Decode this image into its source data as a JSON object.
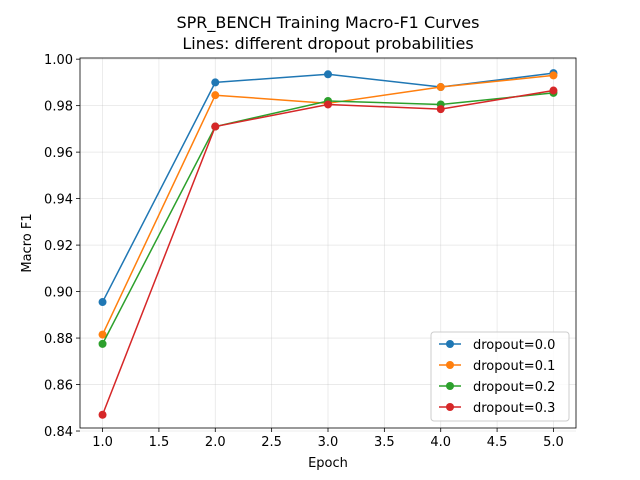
{
  "chart_data": {
    "type": "line",
    "title": "SPR_BENCH Training Macro-F1 Curves",
    "subtitle": "Lines: different dropout probabilities",
    "xlabel": "Epoch",
    "ylabel": "Macro F1",
    "x": [
      1.0,
      2.0,
      3.0,
      4.0,
      5.0
    ],
    "xlim": [
      0.8,
      5.2
    ],
    "ylim": [
      0.8413,
      1.0005
    ],
    "xticks": [
      "1.0",
      "1.5",
      "2.0",
      "2.5",
      "3.0",
      "3.5",
      "4.0",
      "4.5",
      "5.0"
    ],
    "yticks": [
      "0.84",
      "0.86",
      "0.88",
      "0.90",
      "0.92",
      "0.94",
      "0.96",
      "0.98",
      "1.00"
    ],
    "grid": true,
    "legend_position": "lower-right",
    "series": [
      {
        "name": "dropout=0.0",
        "color": "#1f77b4",
        "values": [
          0.8955,
          0.99,
          0.9935,
          0.988,
          0.994
        ]
      },
      {
        "name": "dropout=0.1",
        "color": "#ff7f0e",
        "values": [
          0.8815,
          0.9845,
          0.981,
          0.988,
          0.993
        ]
      },
      {
        "name": "dropout=0.2",
        "color": "#2ca02c",
        "values": [
          0.8775,
          0.971,
          0.982,
          0.9805,
          0.9855
        ]
      },
      {
        "name": "dropout=0.3",
        "color": "#d62728",
        "values": [
          0.847,
          0.971,
          0.9805,
          0.9785,
          0.9865
        ]
      }
    ]
  }
}
